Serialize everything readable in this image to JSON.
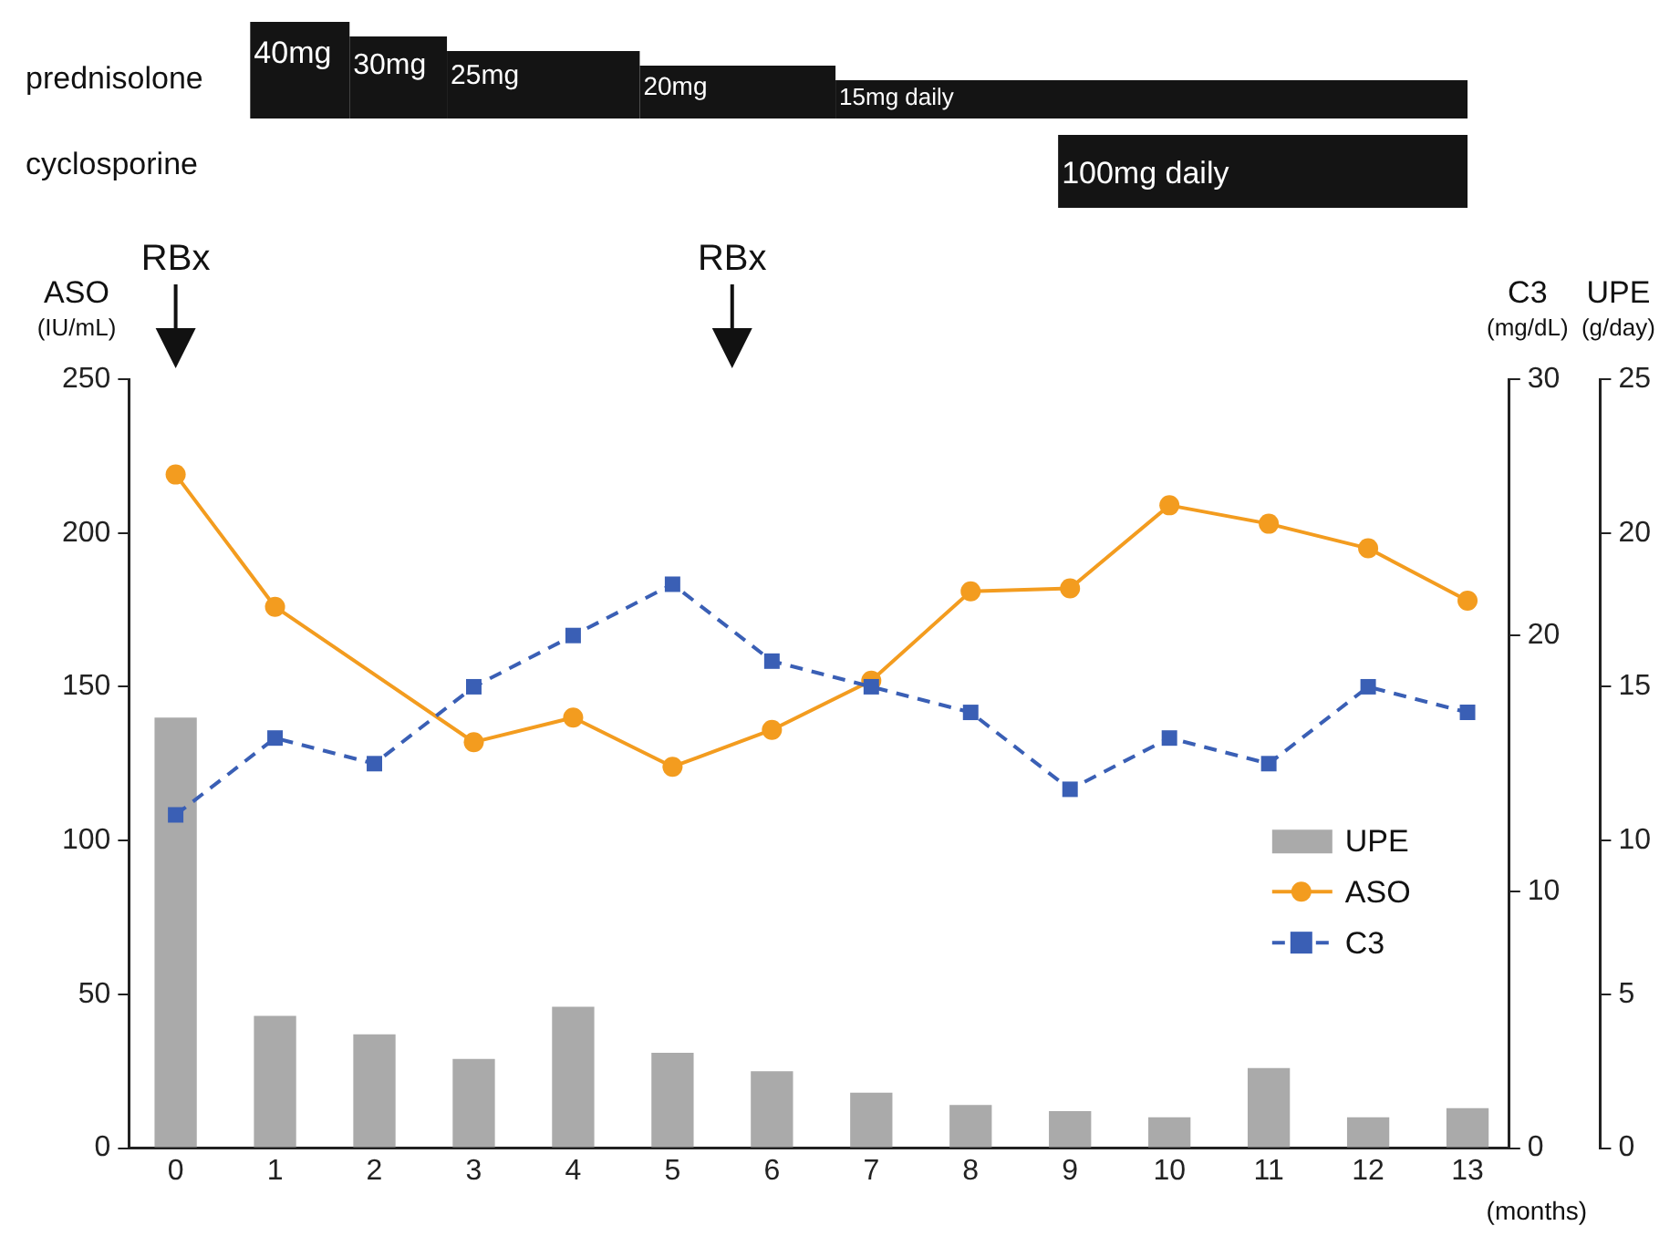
{
  "chart_data": {
    "type": "line",
    "xlabel": "(months)",
    "ylabel": "ASO (IU/mL)",
    "y2label": "C3 (mg/dL)",
    "y3label": "UPE (g/day)",
    "x": [
      0,
      1,
      2,
      3,
      4,
      5,
      6,
      7,
      8,
      9,
      10,
      11,
      12,
      13
    ],
    "xlim": [
      -0.47,
      13.42
    ],
    "xticks": [
      0,
      1,
      2,
      3,
      4,
      5,
      6,
      7,
      8,
      9,
      10,
      11,
      12,
      13
    ],
    "ylim": [
      0,
      250
    ],
    "yticks": [
      0,
      50,
      100,
      150,
      200,
      250
    ],
    "y2lim": [
      0,
      30
    ],
    "y2ticks": [
      0,
      10,
      20,
      30
    ],
    "y3lim": [
      0,
      25
    ],
    "y3ticks": [
      0,
      5,
      10,
      15,
      20,
      25
    ],
    "series": [
      {
        "name": "UPE",
        "type": "bar",
        "axis": "y3",
        "color": "#aaaaaa",
        "values": [
          14,
          4.3,
          3.7,
          2.9,
          4.6,
          3.1,
          2.5,
          1.8,
          1.4,
          1.2,
          1.0,
          2.6,
          1.0,
          1.3
        ]
      },
      {
        "name": "ASO",
        "color": "#f39c1f",
        "marker": "circle",
        "line_style": "solid",
        "values": [
          219,
          176,
          null,
          132,
          140,
          124,
          136,
          152,
          181,
          182,
          209,
          203,
          195,
          178
        ]
      },
      {
        "name": "C3",
        "axis": "y2",
        "color": "#3a5fb5",
        "marker": "square",
        "line_style": "dashed",
        "values": [
          13,
          16,
          15,
          18,
          20,
          22,
          19,
          18,
          17,
          14,
          16,
          15,
          18,
          17
        ]
      }
    ],
    "legend": "right",
    "annotations": [
      "prednisolone",
      "40mg",
      "30mg",
      "25mg",
      "20mg",
      "15mg daily",
      "cyclosporine",
      "100mg daily",
      "RBx",
      "RBx"
    ]
  }
}
